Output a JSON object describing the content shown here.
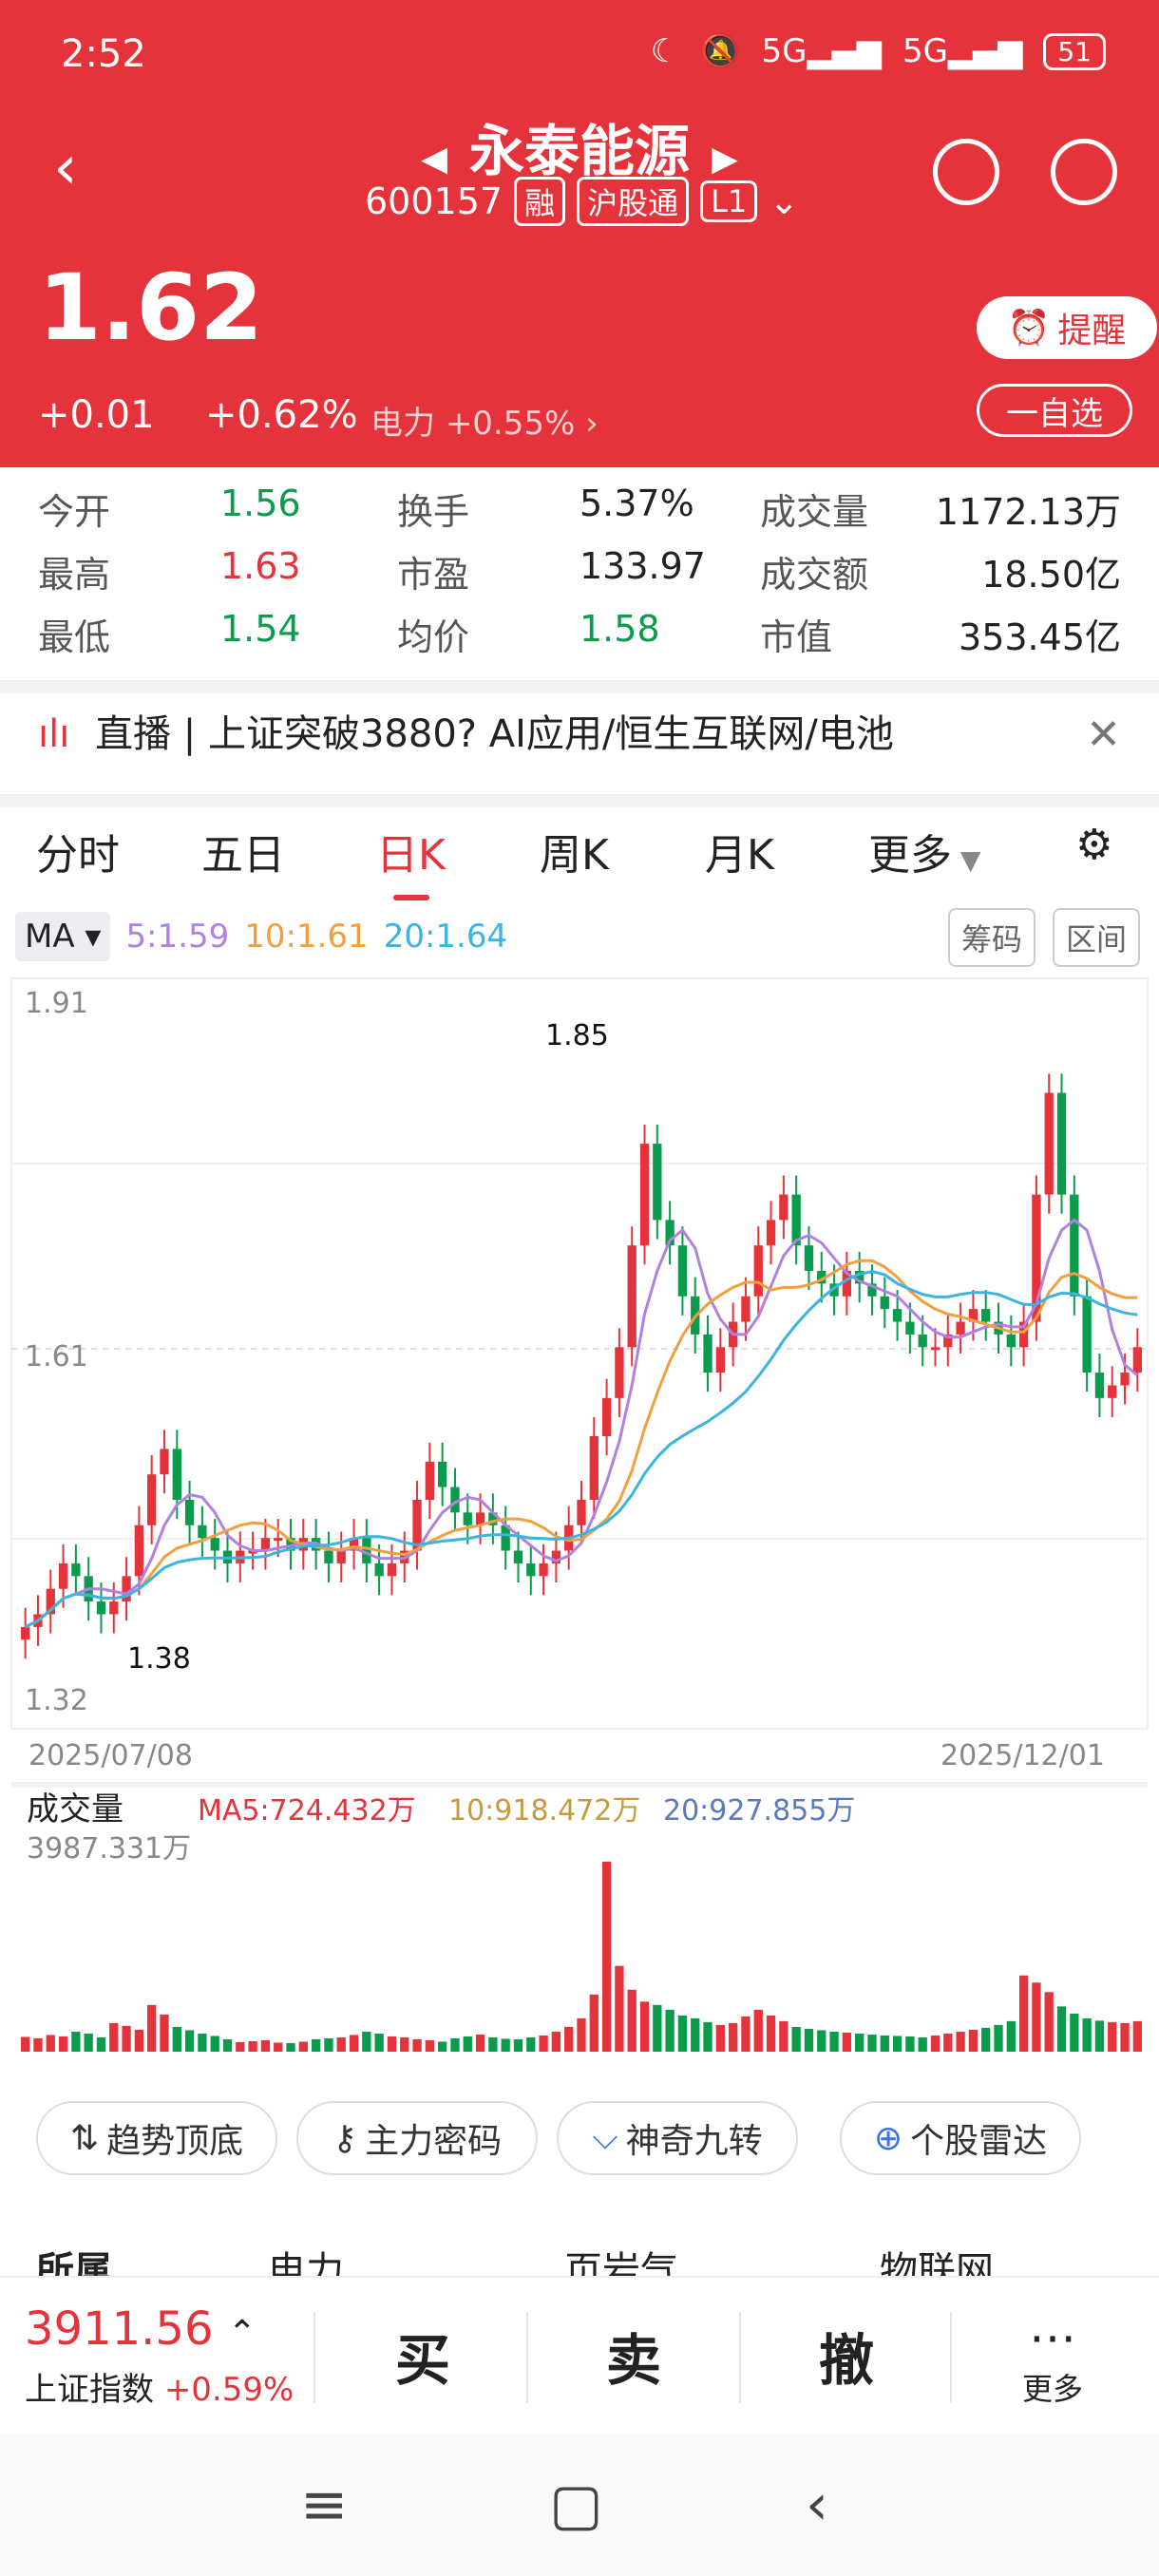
{
  "status": {
    "time": "2:52",
    "battery": "51"
  },
  "header": {
    "name": "永泰能源",
    "code": "600157",
    "tags": [
      "融",
      "沪股通",
      "L1"
    ],
    "price": "1.62",
    "change": "+0.01",
    "change_pct": "+0.62%",
    "sector": "电力",
    "sector_pct": "+0.55%",
    "remind_label": "提醒",
    "watch_label": "一自选"
  },
  "stats": {
    "open_label": "今开",
    "open": "1.56",
    "high_label": "最高",
    "high": "1.63",
    "low_label": "最低",
    "low": "1.54",
    "turnover_label": "换手",
    "turnover": "5.37%",
    "pe_label": "市盈",
    "pe": "133.97",
    "avg_label": "均价",
    "avg": "1.58",
    "vol_label": "成交量",
    "vol": "1172.13万",
    "amount_label": "成交额",
    "amount": "18.50亿",
    "mcap_label": "市值",
    "mcap": "353.45亿"
  },
  "broadcast": {
    "text": "直播 | 上证突破3880? AI应用/恒生互联网/电池"
  },
  "tabs": [
    "分时",
    "五日",
    "日K",
    "周K",
    "月K",
    "更多"
  ],
  "ma": {
    "label": "MA",
    "ma5": "5:1.59",
    "ma10": "10:1.61",
    "ma20": "20:1.64",
    "chip_btn": "筹码",
    "range_btn": "区间"
  },
  "chart_data": {
    "type": "candlestick",
    "x_start": "2025/07/08",
    "x_end": "2025/12/01",
    "y_top_label": "1.91",
    "y_mid_label": "1.61",
    "y_bottom_label": "1.32",
    "ylim": [
      1.32,
      1.91
    ],
    "high_mark": "1.85",
    "low_mark": "1.38",
    "closes": [
      1.4,
      1.41,
      1.43,
      1.45,
      1.44,
      1.42,
      1.41,
      1.42,
      1.44,
      1.48,
      1.52,
      1.54,
      1.5,
      1.48,
      1.47,
      1.46,
      1.45,
      1.46,
      1.46,
      1.47,
      1.47,
      1.46,
      1.47,
      1.46,
      1.45,
      1.46,
      1.47,
      1.45,
      1.44,
      1.45,
      1.46,
      1.5,
      1.53,
      1.51,
      1.49,
      1.48,
      1.49,
      1.48,
      1.46,
      1.45,
      1.44,
      1.45,
      1.46,
      1.48,
      1.5,
      1.55,
      1.58,
      1.62,
      1.7,
      1.78,
      1.72,
      1.7,
      1.66,
      1.63,
      1.6,
      1.62,
      1.64,
      1.66,
      1.7,
      1.72,
      1.74,
      1.7,
      1.68,
      1.67,
      1.66,
      1.68,
      1.67,
      1.66,
      1.65,
      1.64,
      1.63,
      1.62,
      1.62,
      1.63,
      1.64,
      1.65,
      1.64,
      1.63,
      1.62,
      1.64,
      1.74,
      1.82,
      1.74,
      1.66,
      1.6,
      1.58,
      1.59,
      1.6,
      1.62
    ]
  },
  "volume": {
    "label": "成交量",
    "ma5": "MA5:724.432万",
    "ma10": "10:918.472万",
    "ma20": "20:927.855万",
    "max": "3987.331万",
    "bars": [
      310,
      280,
      350,
      320,
      420,
      380,
      300,
      600,
      540,
      460,
      980,
      780,
      520,
      450,
      380,
      330,
      260,
      200,
      220,
      240,
      190,
      180,
      210,
      260,
      280,
      300,
      350,
      420,
      380,
      320,
      300,
      260,
      240,
      210,
      280,
      320,
      360,
      300,
      270,
      260,
      300,
      340,
      420,
      520,
      700,
      1200,
      3987,
      1800,
      1300,
      1050,
      980,
      880,
      760,
      700,
      620,
      560,
      600,
      740,
      880,
      760,
      640,
      520,
      480,
      450,
      420,
      400,
      380,
      360,
      340,
      330,
      320,
      300,
      340,
      380,
      420,
      460,
      500,
      560,
      640,
      1600,
      1450,
      1250,
      950,
      800,
      700,
      650,
      620,
      600,
      640
    ]
  },
  "tools": [
    "趋势顶底",
    "主力密码",
    "神奇九转",
    "个股雷达"
  ],
  "concepts": [
    "所属",
    "电力",
    "页岩气",
    "物联网"
  ],
  "bottom": {
    "index_value": "3911.56",
    "index_name": "上证指数",
    "index_pct": "+0.59%",
    "buy": "买",
    "sell": "卖",
    "cancel": "撤",
    "more": "更多"
  },
  "colors": {
    "brand": "#e5333b",
    "up": "#e5333b",
    "down": "#0a9b4d",
    "ma5": "#b180e0",
    "ma10": "#f0a040",
    "ma20": "#3bb4e0"
  }
}
